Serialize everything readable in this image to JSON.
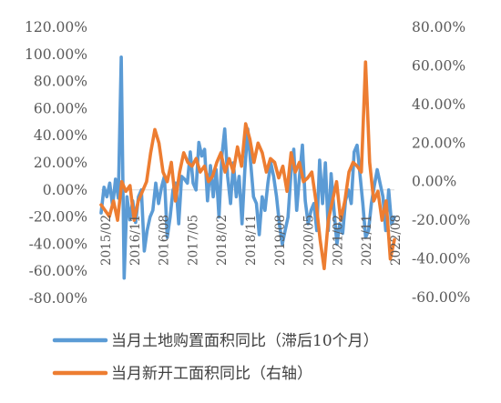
{
  "chart_data": {
    "type": "line",
    "title": "",
    "x_ticks": [
      "2015/02",
      "2016/11",
      "2016/08",
      "2017/05",
      "2018/02",
      "2018/11",
      "2019/08",
      "2020/05",
      "2021/02",
      "2021/11",
      "2022/08"
    ],
    "y_left": {
      "ticks": [
        "120.00%",
        "100.00%",
        "80.00%",
        "60.00%",
        "40.00%",
        "20.00%",
        "0.00%",
        "-20.00%",
        "-40.00%",
        "-60.00%",
        "-80.00%"
      ],
      "ylim": [
        -80,
        120
      ],
      "unit": "%"
    },
    "y_right": {
      "ticks": [
        "80.00%",
        "60.00%",
        "40.00%",
        "20.00%",
        "0.00%",
        "-20.00%",
        "-40.00%",
        "-60.00%"
      ],
      "ylim": [
        -60,
        80
      ],
      "unit": "%"
    },
    "series": [
      {
        "name": "当月土地购置面积同比（滞后10个月）",
        "axis": "left",
        "color": "#5B9BD5",
        "values": [
          -17,
          2,
          -5,
          5,
          -12,
          8,
          -6,
          98,
          -65,
          -5,
          -22,
          -8,
          -24,
          -5,
          0,
          -45,
          -30,
          -20,
          -15,
          5,
          -10,
          2,
          10,
          -35,
          -20,
          0,
          5,
          -25,
          10,
          8,
          5,
          28,
          5,
          0,
          35,
          25,
          30,
          -8,
          18,
          -5,
          15,
          -20,
          25,
          45,
          10,
          -10,
          20,
          -5,
          10,
          -25,
          15,
          45,
          20,
          -5,
          -10,
          -33,
          -5,
          -15,
          5,
          20,
          10,
          -5,
          -25,
          -40,
          -30,
          -20,
          12,
          30,
          -15,
          10,
          33,
          -8,
          -25,
          -15,
          -10,
          -30,
          22,
          -10,
          20,
          -30,
          12,
          -15,
          -40,
          -25,
          -32,
          -8,
          0,
          -10,
          28,
          33,
          12,
          -10,
          -35,
          -30,
          -10,
          3,
          15,
          5,
          -5,
          -30,
          0,
          -25,
          -20
        ]
      },
      {
        "name": "当月新开工面积同比（右轴）",
        "axis": "right",
        "color": "#ED7D31",
        "values": [
          -12,
          -15,
          -18,
          -10,
          -20,
          0,
          -5,
          -2,
          -20,
          -10,
          -5,
          0,
          15,
          27,
          20,
          5,
          0,
          10,
          -10,
          5,
          15,
          10,
          8,
          12,
          5,
          8,
          0,
          3,
          10,
          15,
          5,
          12,
          5,
          18,
          8,
          30,
          22,
          10,
          20,
          15,
          5,
          12,
          10,
          2,
          8,
          -5,
          15,
          5,
          10,
          0,
          2,
          5,
          -10,
          -30,
          -45,
          -20,
          -10,
          0,
          -20,
          -10,
          5,
          10,
          8,
          5,
          62,
          10,
          -10,
          -5,
          -20,
          -10,
          -40,
          -30
        ]
      }
    ],
    "legend": {
      "placement": "bottom"
    }
  }
}
